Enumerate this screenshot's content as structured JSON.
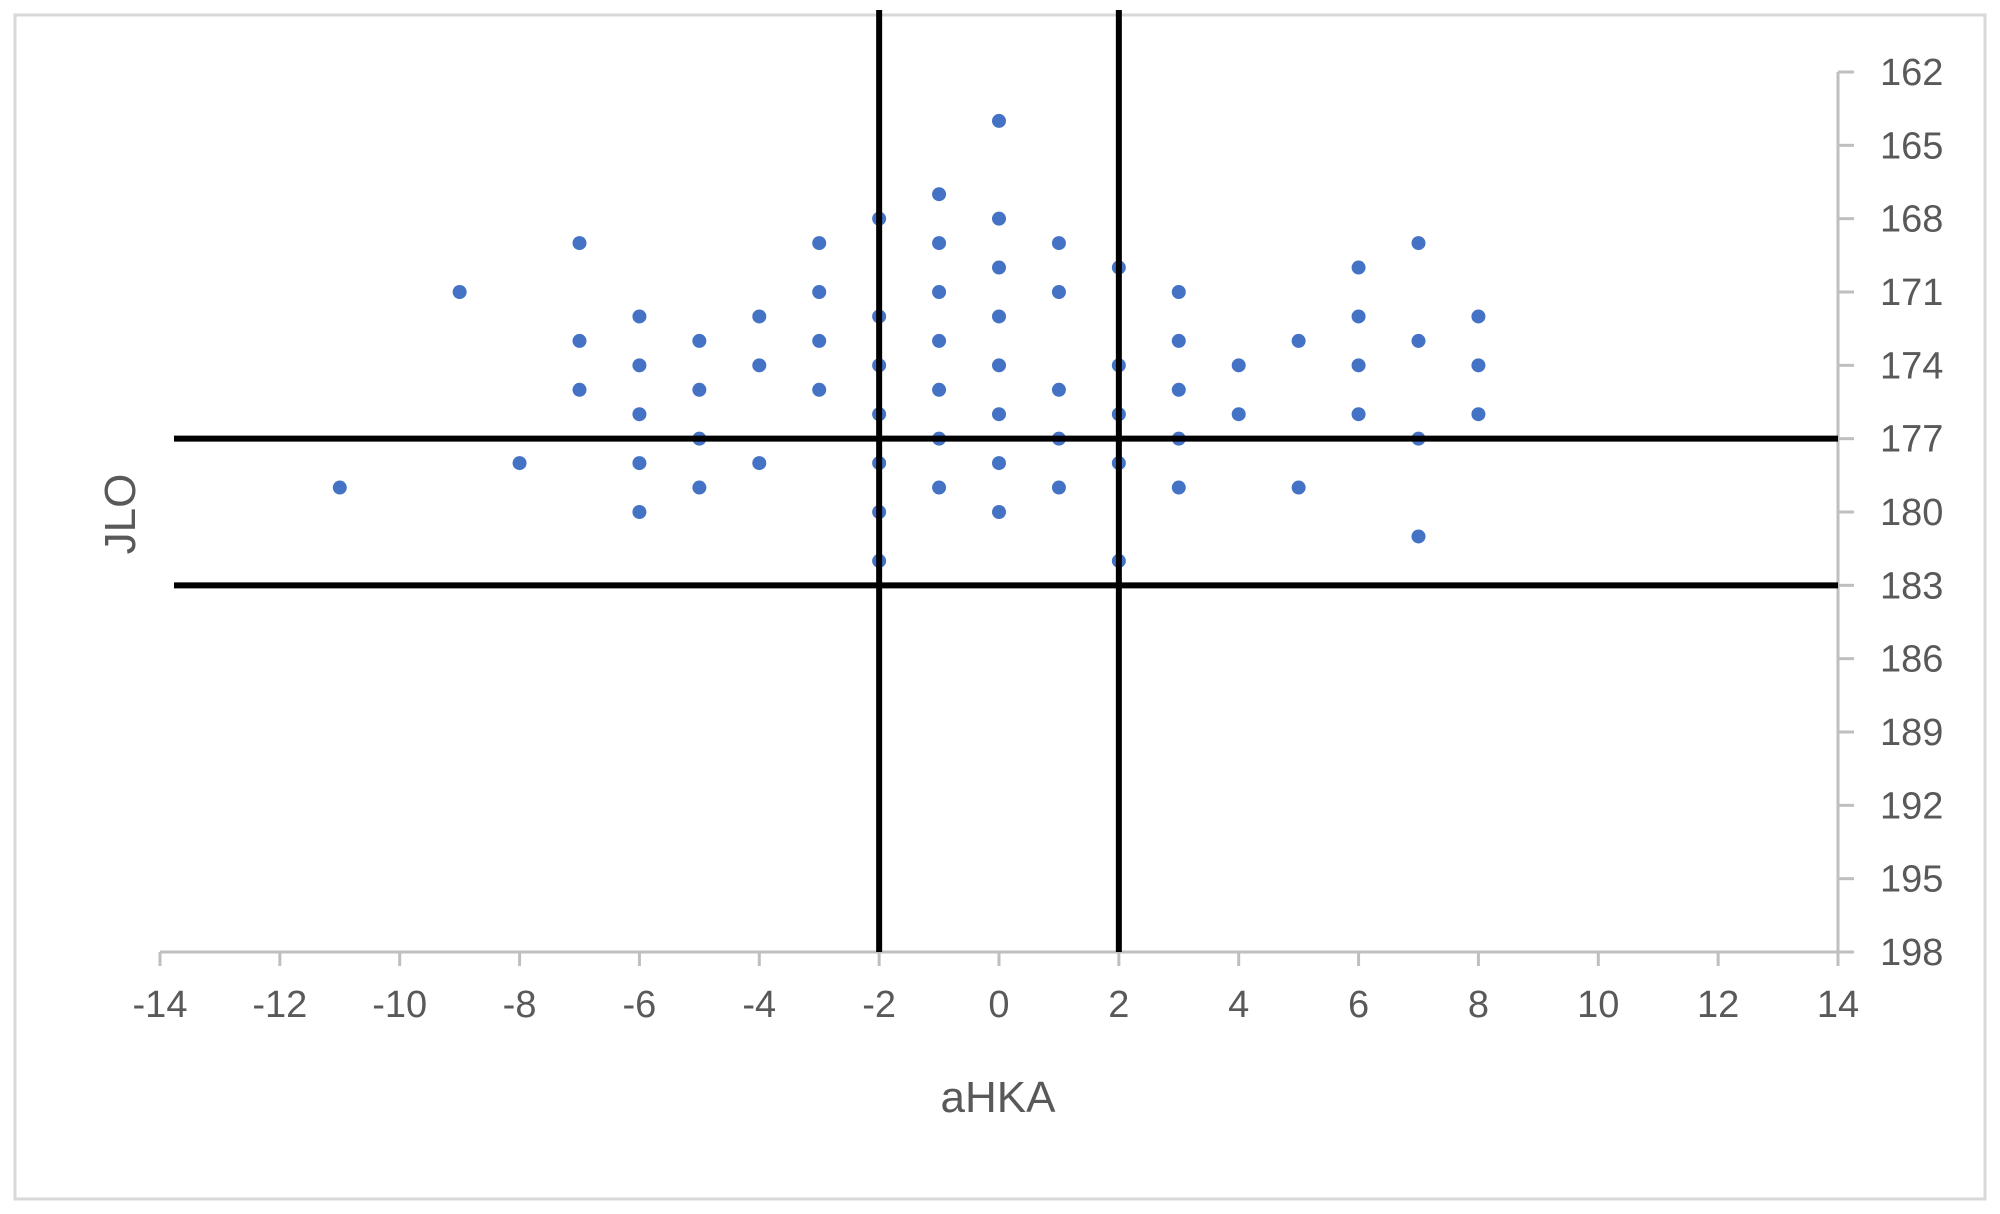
{
  "chart_data": {
    "type": "scatter",
    "title": "",
    "xlabel": "aHKA",
    "ylabel": "JLO",
    "xlim": [
      -14,
      14
    ],
    "ylim": [
      162,
      198
    ],
    "y_reversed": true,
    "y_axis_side": "right",
    "grid": false,
    "legend": "none",
    "x_ticks": [
      -14,
      -12,
      -10,
      -8,
      -6,
      -4,
      -2,
      0,
      2,
      4,
      6,
      8,
      10,
      12,
      14
    ],
    "y_ticks": [
      162,
      165,
      168,
      171,
      174,
      177,
      180,
      183,
      186,
      189,
      192,
      195,
      198
    ],
    "reference_lines": {
      "vertical_x": [
        -2,
        2
      ],
      "horizontal_y": [
        177,
        183
      ]
    },
    "series": [
      {
        "color": "#4472c4",
        "points": [
          {
            "x": 0,
            "y": 164
          },
          {
            "x": -1,
            "y": 167
          },
          {
            "x": -2,
            "y": 168
          },
          {
            "x": 0,
            "y": 168
          },
          {
            "x": -7,
            "y": 169
          },
          {
            "x": -3,
            "y": 169
          },
          {
            "x": -1,
            "y": 169
          },
          {
            "x": 1,
            "y": 169
          },
          {
            "x": 7,
            "y": 169
          },
          {
            "x": 0,
            "y": 170
          },
          {
            "x": 2,
            "y": 170
          },
          {
            "x": 6,
            "y": 170
          },
          {
            "x": -9,
            "y": 171
          },
          {
            "x": -3,
            "y": 171
          },
          {
            "x": -1,
            "y": 171
          },
          {
            "x": 1,
            "y": 171
          },
          {
            "x": 3,
            "y": 171
          },
          {
            "x": -6,
            "y": 172
          },
          {
            "x": -4,
            "y": 172
          },
          {
            "x": -2,
            "y": 172
          },
          {
            "x": 0,
            "y": 172
          },
          {
            "x": 6,
            "y": 172
          },
          {
            "x": 8,
            "y": 172
          },
          {
            "x": -7,
            "y": 173
          },
          {
            "x": -5,
            "y": 173
          },
          {
            "x": -3,
            "y": 173
          },
          {
            "x": -1,
            "y": 173
          },
          {
            "x": 3,
            "y": 173
          },
          {
            "x": 5,
            "y": 173
          },
          {
            "x": 7,
            "y": 173
          },
          {
            "x": -6,
            "y": 174
          },
          {
            "x": -4,
            "y": 174
          },
          {
            "x": -2,
            "y": 174
          },
          {
            "x": 0,
            "y": 174
          },
          {
            "x": 2,
            "y": 174
          },
          {
            "x": 4,
            "y": 174
          },
          {
            "x": 6,
            "y": 174
          },
          {
            "x": 8,
            "y": 174
          },
          {
            "x": -7,
            "y": 175
          },
          {
            "x": -5,
            "y": 175
          },
          {
            "x": -3,
            "y": 175
          },
          {
            "x": -1,
            "y": 175
          },
          {
            "x": 1,
            "y": 175
          },
          {
            "x": 3,
            "y": 175
          },
          {
            "x": -6,
            "y": 176
          },
          {
            "x": -2,
            "y": 176
          },
          {
            "x": 0,
            "y": 176
          },
          {
            "x": 2,
            "y": 176
          },
          {
            "x": 4,
            "y": 176
          },
          {
            "x": 6,
            "y": 176
          },
          {
            "x": 8,
            "y": 176
          },
          {
            "x": -5,
            "y": 177
          },
          {
            "x": -1,
            "y": 177
          },
          {
            "x": 1,
            "y": 177
          },
          {
            "x": 3,
            "y": 177
          },
          {
            "x": 7,
            "y": 177
          },
          {
            "x": -8,
            "y": 178
          },
          {
            "x": -6,
            "y": 178
          },
          {
            "x": -4,
            "y": 178
          },
          {
            "x": -2,
            "y": 178
          },
          {
            "x": 0,
            "y": 178
          },
          {
            "x": 2,
            "y": 178
          },
          {
            "x": -11,
            "y": 179
          },
          {
            "x": -5,
            "y": 179
          },
          {
            "x": -1,
            "y": 179
          },
          {
            "x": 1,
            "y": 179
          },
          {
            "x": 3,
            "y": 179
          },
          {
            "x": 5,
            "y": 179
          },
          {
            "x": -6,
            "y": 180
          },
          {
            "x": -2,
            "y": 180
          },
          {
            "x": 0,
            "y": 180
          },
          {
            "x": 7,
            "y": 181
          },
          {
            "x": -2,
            "y": 182
          },
          {
            "x": 2,
            "y": 182
          }
        ]
      }
    ]
  }
}
